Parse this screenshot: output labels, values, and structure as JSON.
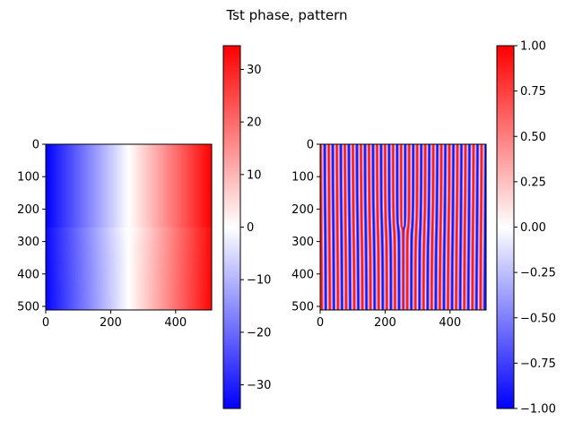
{
  "title": "Tst phase, pattern",
  "chart_data": [
    {
      "type": "heatmap",
      "name": "phase",
      "description_source": "left image panel",
      "colormap": "bwr",
      "x_range": [
        0,
        511
      ],
      "y_range": [
        0,
        511
      ],
      "y_inverted": true,
      "xticks": [
        0,
        200,
        400
      ],
      "yticks": [
        0,
        100,
        200,
        300,
        400,
        500
      ],
      "value_range": [
        -34.5,
        34.5
      ],
      "field": "x-linear phase ramp plus a defect singularity at (256, 256)",
      "defect_center": [
        256,
        256
      ],
      "colorbar": {
        "ticks": [
          -30,
          -20,
          -10,
          0,
          10,
          20,
          30
        ]
      }
    },
    {
      "type": "heatmap",
      "name": "pattern",
      "description_source": "right image panel",
      "colormap": "bwr",
      "x_range": [
        0,
        511
      ],
      "y_range": [
        0,
        511
      ],
      "y_inverted": true,
      "xticks": [
        0,
        200,
        400
      ],
      "yticks": [
        0,
        100,
        200,
        300,
        400,
        500
      ],
      "value_range": [
        -1.0,
        1.0
      ],
      "field": "cos(phase) stripe pattern with a dislocation at (256, 256)",
      "defect_center": [
        256,
        256
      ],
      "colorbar": {
        "ticks": [
          "-1.00",
          "-0.75",
          "-0.50",
          "-0.25",
          "0.00",
          "0.25",
          "0.50",
          "0.75",
          "1.00"
        ]
      }
    }
  ]
}
